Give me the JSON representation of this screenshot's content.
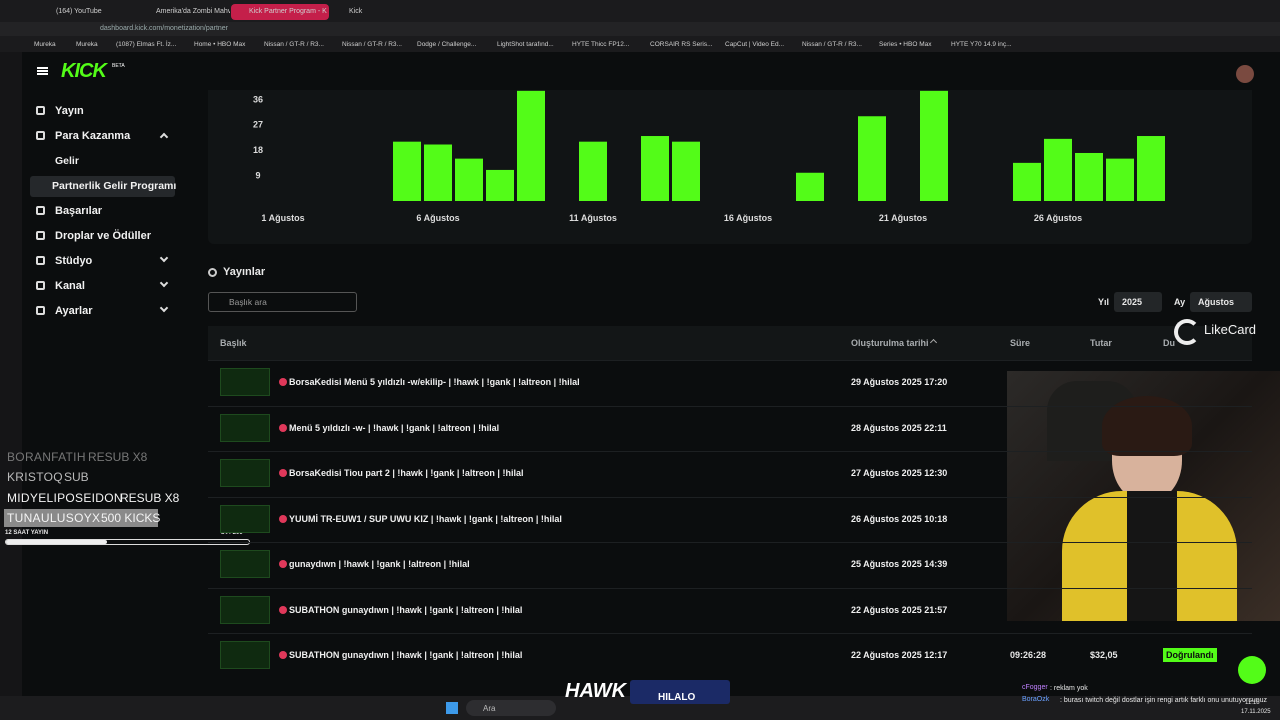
{
  "browser": {
    "tabs": [
      "(164) YouTube",
      "Amerika'da Zombi Mahv",
      "Kick Partner Program - K",
      "Kick"
    ],
    "url": "dashboard.kick.com/monetization/partner",
    "bookmarks": [
      "Mureka",
      "Mureka",
      "(1087) Elmas Ft. İz...",
      "Home • HBO Max",
      "Nissan / GT-R / R3...",
      "Nissan / GT-R / R3...",
      "Dodge / Challenge...",
      "LightShot tarafınd...",
      "HYTE Thicc FP12...",
      "CORSAIR RS Seris...",
      "CapCut | Video Ed...",
      "Nissan / GT-R / R3...",
      "Series • HBO Max",
      "HYTE Y70 14.9 inç..."
    ]
  },
  "sidebar": {
    "logo": "KICK",
    "badge": "BETA",
    "items": [
      "Yayın",
      "Para Kazanma",
      "Gelir",
      "Partnerlik Gelir Programı",
      "Başarılar",
      "Droplar ve Ödüller",
      "Stüdyo",
      "Kanal",
      "Ayarlar"
    ]
  },
  "chart_data": {
    "type": "bar",
    "color": "#53fc18",
    "categories": [
      "1 Ağustos",
      null,
      null,
      null,
      null,
      "6 Ağustos",
      null,
      null,
      null,
      null,
      "11 Ağustos",
      null,
      null,
      null,
      null,
      "16 Ağustos",
      null,
      null,
      null,
      null,
      "21 Ağustos",
      null,
      null,
      null,
      null,
      "26 Ağustos",
      null,
      null,
      null
    ],
    "values": [
      0,
      0,
      0,
      0,
      21,
      20,
      15,
      11,
      39,
      0,
      21,
      0,
      23,
      21,
      0,
      0,
      0,
      10,
      0,
      30,
      0,
      39,
      0,
      0,
      13.5,
      22,
      17,
      15,
      23
    ],
    "ylim": [
      0,
      40
    ],
    "yticks": [
      9,
      18,
      27,
      36
    ]
  },
  "streams": {
    "title": "Yayınlar",
    "search": "Başlık ara",
    "year_label": "Yıl",
    "year": "2025",
    "month_label": "Ay",
    "month": "Ağustos",
    "columns": [
      "Başlık",
      "Oluşturulma tarihi",
      "Süre",
      "Tutar",
      "Du"
    ],
    "rows": [
      [
        "BorsaKedisi Menü 5 yıldızlı -w/ekilip- | !hawk | !gank | !altreon | !hilal",
        "29 Ağustos 2025 17:20"
      ],
      [
        "Menü 5 yıldızlı -w- | !hawk | !gank | !altreon | !hilal",
        "28 Ağustos 2025 22:11"
      ],
      [
        "BorsaKedisi Tiou part 2 | !hawk | !gank | !altreon | !hilal",
        "27 Ağustos 2025 12:30"
      ],
      [
        "YUUMİ TR-EUW1 / SUP UWU KIZ | !hawk | !gank | !altreon | !hilal",
        "26 Ağustos 2025 10:18"
      ],
      [
        "gunaydıwn | !hawk | !gank | !altreon | !hilal",
        "25 Ağustos 2025 14:39"
      ],
      [
        "SUBATHON gunaydıwn | !hawk | !gank | !altreon | !hilal",
        "22 Ağustos 2025 21:57"
      ],
      [
        "SUBATHON gunaydıwn | !hawk | !gank | !altreon | !hilal",
        "22 Ağustos 2025 12:17",
        "09:26:28",
        "$32,05",
        "Doğrulandı"
      ]
    ]
  },
  "overlay": {
    "alerts": [
      [
        "BORANFATIH",
        "RESUB X8"
      ],
      [
        "KRISTOQ",
        "SUB"
      ],
      [
        "MIDYELIPOSEIDON",
        "RESUB X8"
      ],
      [
        "TUNAULUSOYX",
        "500 KICKS"
      ]
    ],
    "progress_label": "12 SAAT YAYIN",
    "progress": "84 / 200",
    "likecard": "LikeCard",
    "hawk": "HAWK",
    "hilalo": "HILALO"
  },
  "chat": [
    [
      "cFogger",
      ": reklam yok"
    ],
    [
      "BoraOzk",
      ": burası twitch değil dostlar işin rengi artık farklı onu unutuyorsunuz"
    ]
  ],
  "taskbar": {
    "search": "Ara",
    "time": "11:18",
    "date": "17.11.2025"
  }
}
